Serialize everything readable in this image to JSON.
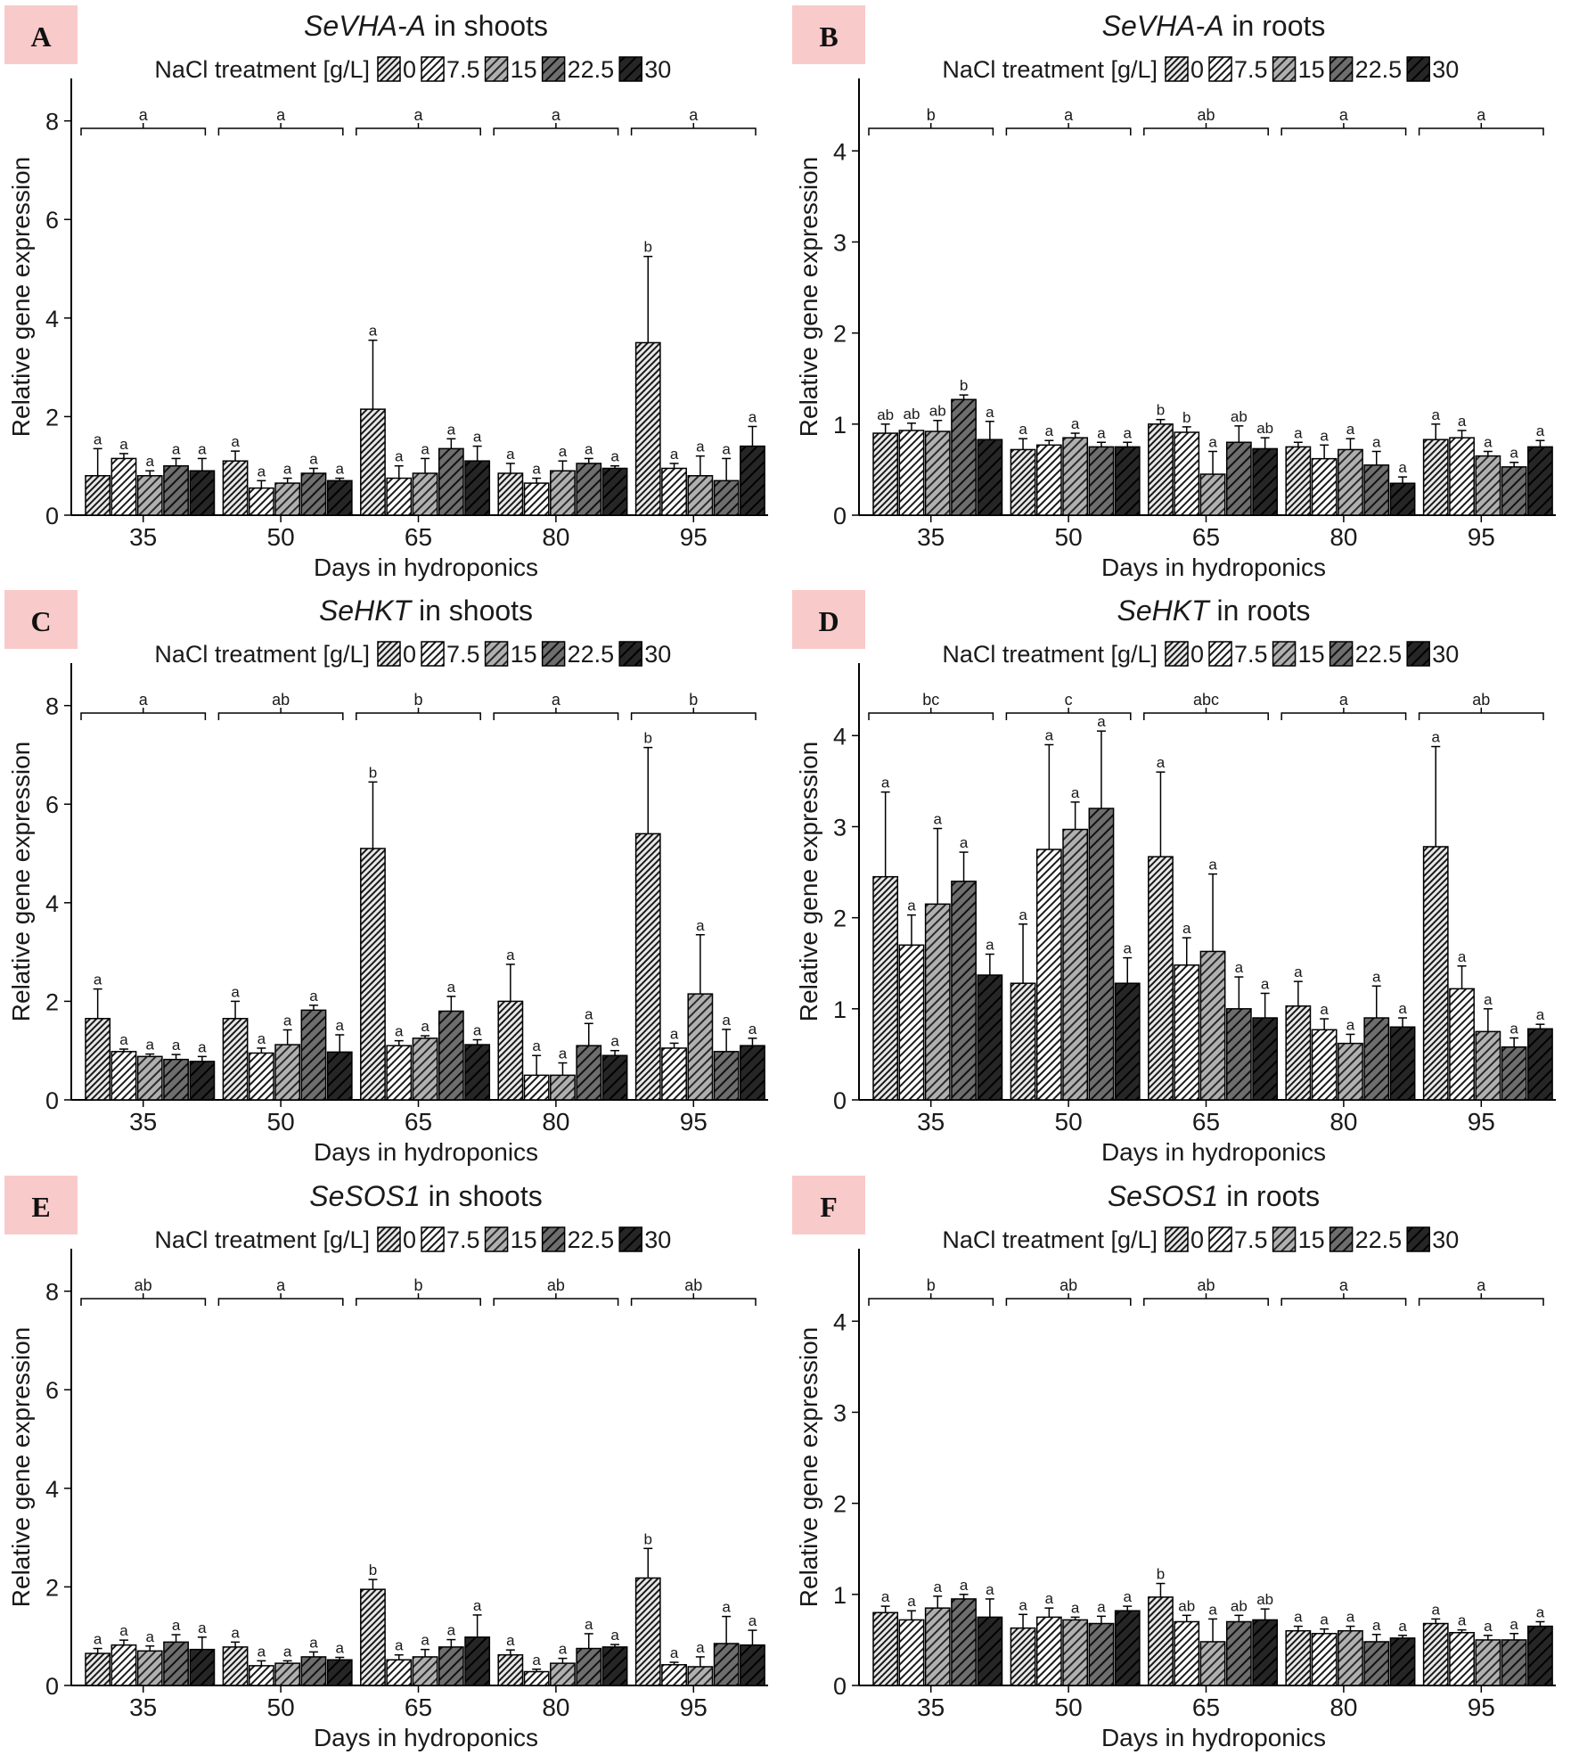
{
  "legend": {
    "title": "NaCl treatment [g/L]",
    "levels": [
      "0",
      "7.5",
      "15",
      "22.5",
      "30"
    ],
    "fills": [
      "#e8e8e8",
      "#ffffff",
      "#b0b0b0",
      "#6e6e6e",
      "#262626"
    ]
  },
  "colors": {
    "panel_letter_bg": "#f9caca",
    "axis": "#000000"
  },
  "chart_data": [
    {
      "letter": "A",
      "type": "bar",
      "title_gene": "SeVHA-A",
      "title_tissue": "in shoots",
      "xlabel": "Days in hydroponics",
      "ylabel": "Relative gene expression",
      "ylim": [
        0,
        8.5
      ],
      "yticks": [
        0,
        2,
        4,
        6,
        8
      ],
      "categories": [
        "35",
        "50",
        "65",
        "80",
        "95"
      ],
      "group_letters": [
        "a",
        "a",
        "a",
        "a",
        "a"
      ],
      "series": [
        {
          "name": "0",
          "values": [
            0.8,
            1.1,
            2.15,
            0.85,
            3.5
          ],
          "errors": [
            0.55,
            0.2,
            1.4,
            0.2,
            1.75
          ],
          "letters": [
            "a",
            "a",
            "a",
            "a",
            "b"
          ]
        },
        {
          "name": "7.5",
          "values": [
            1.15,
            0.55,
            0.75,
            0.65,
            0.95
          ],
          "errors": [
            0.1,
            0.15,
            0.25,
            0.1,
            0.1
          ],
          "letters": [
            "a",
            "a",
            "a",
            "a",
            "a"
          ]
        },
        {
          "name": "15",
          "values": [
            0.8,
            0.65,
            0.85,
            0.9,
            0.8
          ],
          "errors": [
            0.1,
            0.1,
            0.3,
            0.2,
            0.4
          ],
          "letters": [
            "a",
            "a",
            "a",
            "a",
            "a"
          ]
        },
        {
          "name": "22.5",
          "values": [
            1.0,
            0.85,
            1.35,
            1.05,
            0.7
          ],
          "errors": [
            0.15,
            0.1,
            0.2,
            0.1,
            0.45
          ],
          "letters": [
            "a",
            "a",
            "a",
            "a",
            "a"
          ]
        },
        {
          "name": "30",
          "values": [
            0.9,
            0.7,
            1.1,
            0.95,
            1.4
          ],
          "errors": [
            0.25,
            0.05,
            0.3,
            0.05,
            0.4
          ],
          "letters": [
            "a",
            "a",
            "a",
            "a",
            "a"
          ]
        }
      ]
    },
    {
      "letter": "B",
      "type": "bar",
      "title_gene": "SeVHA-A",
      "title_tissue": "in roots",
      "xlabel": "Days in hydroponics",
      "ylabel": "Relative gene expression",
      "ylim": [
        0,
        4.6
      ],
      "yticks": [
        0,
        1,
        2,
        3,
        4
      ],
      "categories": [
        "35",
        "50",
        "65",
        "80",
        "95"
      ],
      "group_letters": [
        "b",
        "a",
        "ab",
        "a",
        "a"
      ],
      "series": [
        {
          "name": "0",
          "values": [
            0.9,
            0.72,
            1.0,
            0.75,
            0.83
          ],
          "errors": [
            0.1,
            0.12,
            0.05,
            0.05,
            0.17
          ],
          "letters": [
            "ab",
            "a",
            "b",
            "a",
            "a"
          ]
        },
        {
          "name": "7.5",
          "values": [
            0.93,
            0.77,
            0.91,
            0.62,
            0.85
          ],
          "errors": [
            0.08,
            0.05,
            0.06,
            0.15,
            0.08
          ],
          "letters": [
            "ab",
            "a",
            "b",
            "a",
            "a"
          ]
        },
        {
          "name": "15",
          "values": [
            0.92,
            0.85,
            0.45,
            0.72,
            0.65
          ],
          "errors": [
            0.12,
            0.05,
            0.25,
            0.12,
            0.05
          ],
          "letters": [
            "ab",
            "a",
            "a",
            "a",
            "a"
          ]
        },
        {
          "name": "22.5",
          "values": [
            1.27,
            0.75,
            0.8,
            0.55,
            0.53
          ],
          "errors": [
            0.05,
            0.05,
            0.18,
            0.15,
            0.05
          ],
          "letters": [
            "b",
            "a",
            "ab",
            "a",
            "a"
          ]
        },
        {
          "name": "30",
          "values": [
            0.83,
            0.75,
            0.73,
            0.35,
            0.75
          ],
          "errors": [
            0.2,
            0.05,
            0.12,
            0.07,
            0.07
          ],
          "letters": [
            "a",
            "a",
            "ab",
            "a",
            "a"
          ]
        }
      ]
    },
    {
      "letter": "C",
      "type": "bar",
      "title_gene": "SeHKT",
      "title_tissue": "in shoots",
      "xlabel": "Days in hydroponics",
      "ylabel": "Relative gene expression",
      "ylim": [
        0,
        8.5
      ],
      "yticks": [
        0,
        2,
        4,
        6,
        8
      ],
      "categories": [
        "35",
        "50",
        "65",
        "80",
        "95"
      ],
      "group_letters": [
        "a",
        "ab",
        "b",
        "a",
        "b"
      ],
      "series": [
        {
          "name": "0",
          "values": [
            1.65,
            1.65,
            5.1,
            2.0,
            5.4
          ],
          "errors": [
            0.6,
            0.35,
            1.35,
            0.75,
            1.75
          ],
          "letters": [
            "a",
            "a",
            "b",
            "a",
            "b"
          ]
        },
        {
          "name": "7.5",
          "values": [
            0.98,
            0.95,
            1.1,
            0.5,
            1.05
          ],
          "errors": [
            0.05,
            0.1,
            0.1,
            0.4,
            0.1
          ],
          "letters": [
            "a",
            "a",
            "a",
            "a",
            "a"
          ]
        },
        {
          "name": "15",
          "values": [
            0.88,
            1.12,
            1.25,
            0.5,
            2.15
          ],
          "errors": [
            0.05,
            0.3,
            0.05,
            0.25,
            1.2
          ],
          "letters": [
            "a",
            "a",
            "a",
            "a",
            "a"
          ]
        },
        {
          "name": "22.5",
          "values": [
            0.82,
            1.82,
            1.8,
            1.1,
            0.98
          ],
          "errors": [
            0.1,
            0.1,
            0.3,
            0.45,
            0.45
          ],
          "letters": [
            "a",
            "a",
            "a",
            "a",
            "a"
          ]
        },
        {
          "name": "30",
          "values": [
            0.78,
            0.97,
            1.12,
            0.9,
            1.1
          ],
          "errors": [
            0.1,
            0.35,
            0.1,
            0.1,
            0.15
          ],
          "letters": [
            "a",
            "a",
            "a",
            "a",
            "a"
          ]
        }
      ]
    },
    {
      "letter": "D",
      "type": "bar",
      "title_gene": "SeHKT",
      "title_tissue": "in roots",
      "xlabel": "Days in hydroponics",
      "ylabel": "Relative gene expression",
      "ylim": [
        0,
        4.6
      ],
      "yticks": [
        0,
        1,
        2,
        3,
        4
      ],
      "categories": [
        "35",
        "50",
        "65",
        "80",
        "95"
      ],
      "group_letters": [
        "bc",
        "c",
        "abc",
        "a",
        "ab"
      ],
      "series": [
        {
          "name": "0",
          "values": [
            2.45,
            1.28,
            2.67,
            1.03,
            2.78
          ],
          "errors": [
            0.93,
            0.65,
            0.93,
            0.27,
            1.1
          ],
          "letters": [
            "a",
            "a",
            "a",
            "a",
            "a"
          ]
        },
        {
          "name": "7.5",
          "values": [
            1.7,
            2.75,
            1.48,
            0.77,
            1.22
          ],
          "errors": [
            0.33,
            1.15,
            0.3,
            0.12,
            0.25
          ],
          "letters": [
            "a",
            "a",
            "a",
            "a",
            "a"
          ]
        },
        {
          "name": "15",
          "values": [
            2.15,
            2.97,
            1.63,
            0.62,
            0.75
          ],
          "errors": [
            0.83,
            0.3,
            0.85,
            0.1,
            0.25
          ],
          "letters": [
            "a",
            "a",
            "a",
            "a",
            "a"
          ]
        },
        {
          "name": "22.5",
          "values": [
            2.4,
            3.2,
            1.0,
            0.9,
            0.58
          ],
          "errors": [
            0.32,
            0.85,
            0.35,
            0.35,
            0.1
          ],
          "letters": [
            "a",
            "a",
            "a",
            "a",
            "a"
          ]
        },
        {
          "name": "30",
          "values": [
            1.37,
            1.28,
            0.9,
            0.8,
            0.78
          ],
          "errors": [
            0.23,
            0.28,
            0.27,
            0.1,
            0.05
          ],
          "letters": [
            "a",
            "a",
            "a",
            "a",
            "a"
          ]
        }
      ]
    },
    {
      "letter": "E",
      "type": "bar",
      "title_gene": "SeSOS1",
      "title_tissue": "in shoots",
      "xlabel": "Days in hydroponics",
      "ylabel": "Relative gene expression",
      "ylim": [
        0,
        8.5
      ],
      "yticks": [
        0,
        2,
        4,
        6,
        8
      ],
      "categories": [
        "35",
        "50",
        "65",
        "80",
        "95"
      ],
      "group_letters": [
        "ab",
        "a",
        "b",
        "ab",
        "ab"
      ],
      "series": [
        {
          "name": "0",
          "values": [
            0.65,
            0.78,
            1.95,
            0.62,
            2.18
          ],
          "errors": [
            0.1,
            0.1,
            0.2,
            0.1,
            0.6
          ],
          "letters": [
            "a",
            "a",
            "b",
            "a",
            "b"
          ]
        },
        {
          "name": "7.5",
          "values": [
            0.82,
            0.4,
            0.52,
            0.28,
            0.42
          ],
          "errors": [
            0.1,
            0.1,
            0.1,
            0.05,
            0.05
          ],
          "letters": [
            "a",
            "a",
            "a",
            "a",
            "a"
          ]
        },
        {
          "name": "15",
          "values": [
            0.7,
            0.45,
            0.58,
            0.45,
            0.38
          ],
          "errors": [
            0.1,
            0.05,
            0.15,
            0.1,
            0.2
          ],
          "letters": [
            "a",
            "a",
            "a",
            "a",
            "a"
          ]
        },
        {
          "name": "22.5",
          "values": [
            0.88,
            0.58,
            0.78,
            0.75,
            0.85
          ],
          "errors": [
            0.15,
            0.1,
            0.15,
            0.3,
            0.55
          ],
          "letters": [
            "a",
            "a",
            "a",
            "a",
            "a"
          ]
        },
        {
          "name": "30",
          "values": [
            0.73,
            0.52,
            0.98,
            0.78,
            0.82
          ],
          "errors": [
            0.25,
            0.05,
            0.45,
            0.05,
            0.3
          ],
          "letters": [
            "a",
            "a",
            "a",
            "a",
            "a"
          ]
        }
      ]
    },
    {
      "letter": "F",
      "type": "bar",
      "title_gene": "SeSOS1",
      "title_tissue": "in roots",
      "xlabel": "Days in hydroponics",
      "ylabel": "Relative gene expression",
      "ylim": [
        0,
        4.6
      ],
      "yticks": [
        0,
        1,
        2,
        3,
        4
      ],
      "categories": [
        "35",
        "50",
        "65",
        "80",
        "95"
      ],
      "group_letters": [
        "b",
        "ab",
        "ab",
        "a",
        "a"
      ],
      "series": [
        {
          "name": "0",
          "values": [
            0.8,
            0.63,
            0.97,
            0.6,
            0.68
          ],
          "errors": [
            0.07,
            0.15,
            0.15,
            0.05,
            0.05
          ],
          "letters": [
            "a",
            "a",
            "b",
            "a",
            "a"
          ]
        },
        {
          "name": "7.5",
          "values": [
            0.72,
            0.75,
            0.7,
            0.57,
            0.58
          ],
          "errors": [
            0.1,
            0.1,
            0.07,
            0.05,
            0.03
          ],
          "letters": [
            "a",
            "a",
            "ab",
            "a",
            "a"
          ]
        },
        {
          "name": "15",
          "values": [
            0.85,
            0.72,
            0.48,
            0.6,
            0.5
          ],
          "errors": [
            0.13,
            0.03,
            0.25,
            0.05,
            0.05
          ],
          "letters": [
            "a",
            "a",
            "a",
            "a",
            "a"
          ]
        },
        {
          "name": "22.5",
          "values": [
            0.95,
            0.68,
            0.7,
            0.48,
            0.5
          ],
          "errors": [
            0.05,
            0.08,
            0.07,
            0.08,
            0.07
          ],
          "letters": [
            "a",
            "a",
            "ab",
            "a",
            "a"
          ]
        },
        {
          "name": "30",
          "values": [
            0.75,
            0.82,
            0.72,
            0.52,
            0.65
          ],
          "errors": [
            0.2,
            0.05,
            0.12,
            0.03,
            0.05
          ],
          "letters": [
            "a",
            "a",
            "ab",
            "a",
            "a"
          ]
        }
      ]
    }
  ]
}
